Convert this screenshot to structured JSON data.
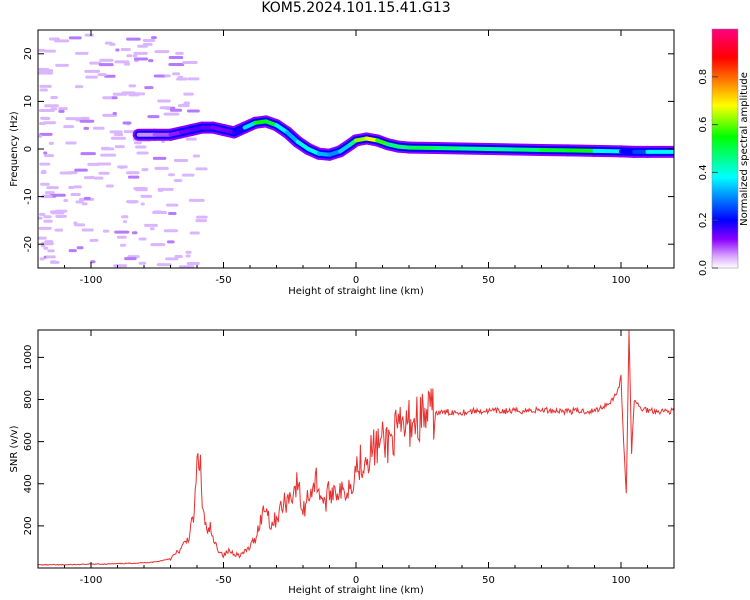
{
  "figure": {
    "title": "KOM5.2024.101.15.41.G13"
  },
  "chart_data": [
    {
      "type": "heatmap",
      "title": "KOM5.2024.101.15.41.G13",
      "xlabel": "Height of straight line (km)",
      "ylabel": "Frequency (Hz)",
      "xlim": [
        -120,
        120
      ],
      "ylim": [
        -25,
        25
      ],
      "x_ticks": [
        -100,
        -50,
        0,
        50,
        100
      ],
      "y_ticks": [
        -20,
        -10,
        0,
        10,
        20
      ],
      "grid": false,
      "colorbar": {
        "label": "Normalized spectral amplitude",
        "range": [
          0,
          1
        ],
        "ticks": [
          0.0,
          0.2,
          0.4,
          0.6,
          0.8
        ],
        "colors": [
          "#ffffff",
          "#d9a3ff",
          "#8b00ff",
          "#0000ff",
          "#00ffff",
          "#00ff00",
          "#ffff00",
          "#ff8000",
          "#ff0000",
          "#ff0080"
        ]
      },
      "ridge": {
        "x": [
          -82,
          -76,
          -70,
          -66,
          -62,
          -58,
          -54,
          -50,
          -46,
          -42,
          -38,
          -34,
          -30,
          -26,
          -22,
          -18,
          -14,
          -10,
          -6,
          -2,
          0,
          4,
          8,
          12,
          16,
          20,
          30,
          40,
          50,
          60,
          70,
          80,
          90,
          100,
          105,
          110,
          120
        ],
        "y": [
          3,
          3,
          3,
          3.5,
          4,
          4.5,
          4.5,
          4,
          3.5,
          4.5,
          5.5,
          5.8,
          5,
          3.5,
          1.5,
          0,
          -1,
          -1.2,
          -0.5,
          1,
          1.8,
          2.2,
          1.8,
          1,
          0.5,
          0.3,
          0.2,
          0.1,
          0,
          -0.1,
          -0.2,
          -0.3,
          -0.4,
          -0.5,
          -0.6,
          -0.6,
          -0.6
        ],
        "amplitude": [
          0.05,
          0.07,
          0.1,
          0.12,
          0.15,
          0.15,
          0.13,
          0.12,
          0.15,
          0.22,
          0.5,
          0.6,
          0.45,
          0.3,
          0.35,
          0.45,
          0.35,
          0.3,
          0.3,
          0.4,
          0.55,
          0.7,
          0.65,
          0.5,
          0.45,
          0.5,
          0.5,
          0.45,
          0.45,
          0.45,
          0.5,
          0.55,
          0.55,
          0.2,
          0.2,
          0.3,
          0.45
        ]
      }
    },
    {
      "type": "line",
      "xlabel": "Height of straight line (km)",
      "ylabel": "SNR (v/v)",
      "xlim": [
        -120,
        120
      ],
      "ylim": [
        0,
        1130
      ],
      "x_ticks": [
        -100,
        -50,
        0,
        50,
        100
      ],
      "y_ticks": [
        200,
        400,
        600,
        800,
        1000
      ],
      "grid": false,
      "series": [
        {
          "color": "#e83030",
          "x": [
            -120,
            -110,
            -100,
            -90,
            -80,
            -75,
            -70,
            -66,
            -63,
            -61,
            -60,
            -59,
            -58,
            -57,
            -56,
            -55,
            -54,
            -52,
            -50,
            -48,
            -46,
            -44,
            -42,
            -40,
            -38,
            -36,
            -34,
            -32,
            -30,
            -28,
            -25,
            -22,
            -20,
            -18,
            -15,
            -12,
            -10,
            -8,
            -5,
            -2,
            0,
            3,
            6,
            9,
            12,
            15,
            18,
            21,
            25,
            30,
            35,
            40,
            45,
            50,
            60,
            70,
            80,
            90,
            95,
            98,
            100,
            101,
            102,
            103,
            104,
            105,
            107,
            110,
            115,
            120
          ],
          "y": [
            15,
            15,
            18,
            20,
            25,
            30,
            45,
            90,
            150,
            260,
            480,
            540,
            300,
            220,
            150,
            200,
            130,
            90,
            60,
            80,
            70,
            60,
            75,
            100,
            140,
            230,
            300,
            200,
            240,
            290,
            340,
            400,
            260,
            350,
            420,
            300,
            360,
            380,
            350,
            400,
            480,
            520,
            560,
            590,
            600,
            640,
            660,
            700,
            720,
            735,
            740,
            740,
            745,
            745,
            745,
            750,
            745,
            745,
            780,
            820,
            900,
            600,
            350,
            1130,
            550,
            800,
            760,
            750,
            745,
            745
          ]
        }
      ]
    }
  ]
}
